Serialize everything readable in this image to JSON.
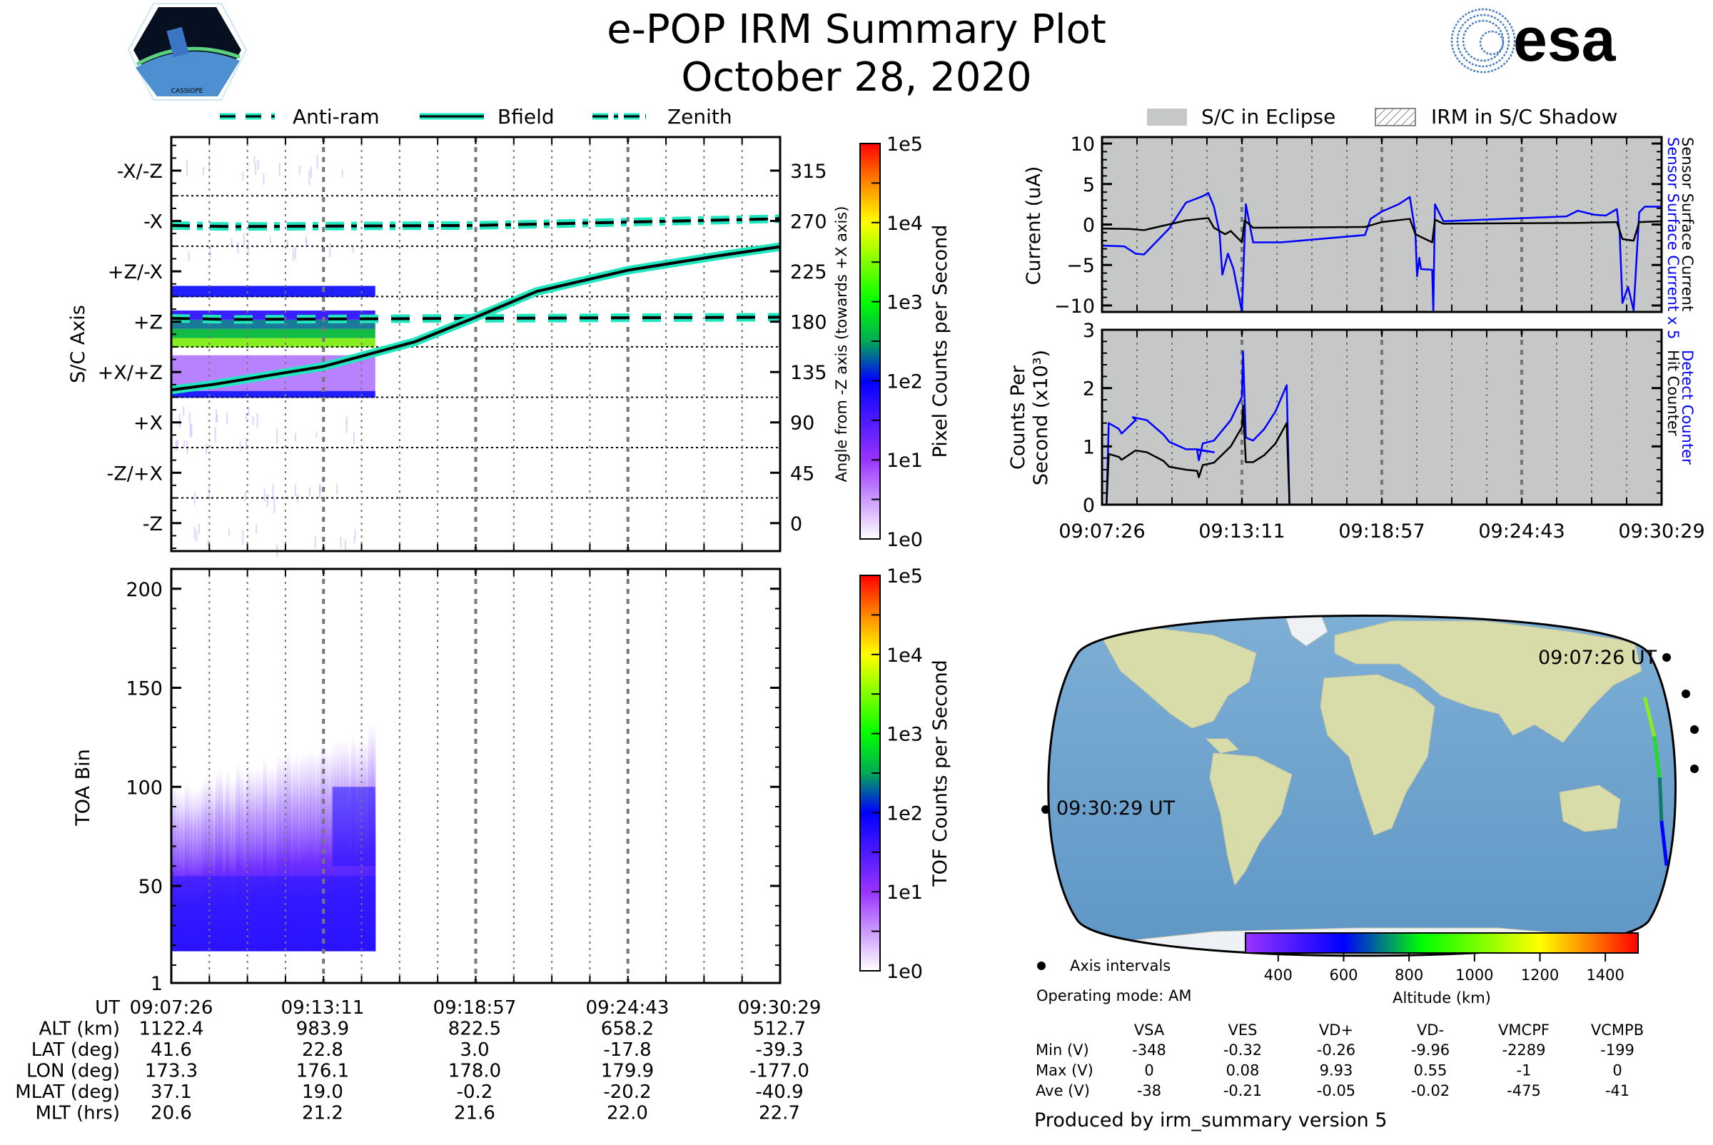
{
  "header": {
    "title": "e-POP IRM Summary Plot",
    "date": "October 28, 2020",
    "left_logo": {
      "name": "CASSIOPE",
      "icon": "cassiope-mission-patch"
    },
    "right_logo": {
      "name": "esa",
      "icon": "esa-logo",
      "color": "#003399"
    }
  },
  "time_axis": {
    "start": "09:07:26",
    "end": "09:30:29",
    "start_seconds": 32846,
    "end_seconds": 34229,
    "tick_labels": [
      "09:07:26",
      "09:13:11",
      "09:18:57",
      "09:24:43",
      "09:30:29"
    ]
  },
  "legend_left": {
    "items": [
      {
        "label": "Anti-ram",
        "style": "dashed",
        "color": "#22e6c0"
      },
      {
        "label": "Bfield",
        "style": "solid",
        "color": "#22e6c0"
      },
      {
        "label": "Zenith",
        "style": "dashdot",
        "color": "#22e6c0"
      }
    ]
  },
  "legend_right": {
    "items": [
      {
        "label": "S/C in Eclipse",
        "style": "fill",
        "color": "#c5c8c7"
      },
      {
        "label": "IRM in S/C Shadow",
        "style": "hatch",
        "color": "#888888"
      }
    ]
  },
  "chart_data": [
    {
      "id": "sc-axis-spectrogram",
      "type": "heatmap",
      "ylabel": "S/C Axis",
      "y2label": "Angle from -Z axis (towards +X axis)",
      "ytick_labels": [
        "-X/-Z",
        "-X",
        "+Z/-X",
        "+Z",
        "+X/+Z",
        "+X",
        "-Z/+X",
        "-Z"
      ],
      "y2ticks": [
        315,
        270,
        225,
        180,
        135,
        90,
        45,
        0
      ],
      "y2lim": [
        -25,
        345
      ],
      "colorbar": {
        "label": "Pixel Counts per Second",
        "scale": "log",
        "ticks": [
          "1e5",
          "1e4",
          "1e3",
          "1e2",
          "1e1",
          "1e0"
        ]
      },
      "data_end_time": "09:14:31",
      "bands": [
        {
          "angle_range": [
            202,
            212
          ],
          "level": "blue"
        },
        {
          "angle_range": [
            157,
            190
          ],
          "level": "green"
        },
        {
          "angle_range": [
            112,
            150
          ],
          "level": "violet"
        },
        {
          "angle_range": [
            112,
            118
          ],
          "level": "blue"
        }
      ],
      "series": [
        {
          "name": "Zenith",
          "style": "dashdot",
          "angles": [
            [
              0,
              266
            ],
            [
              0.1,
              265
            ],
            [
              0.5,
              266
            ],
            [
              1.0,
              272
            ]
          ]
        },
        {
          "name": "Anti-ram",
          "style": "dashed",
          "angles": [
            [
              0,
              183
            ],
            [
              0.1,
              182
            ],
            [
              0.5,
              183
            ],
            [
              1.0,
              184
            ]
          ]
        },
        {
          "name": "Bfield",
          "style": "solid",
          "angles": [
            [
              0,
              119
            ],
            [
              0.07,
              124
            ],
            [
              0.25,
              140
            ],
            [
              0.4,
              162
            ],
            [
              0.5,
              184
            ],
            [
              0.6,
              207
            ],
            [
              0.75,
              226
            ],
            [
              0.9,
              239
            ],
            [
              1.0,
              247
            ]
          ]
        }
      ]
    },
    {
      "id": "toa-spectrogram",
      "type": "heatmap",
      "ylabel": "TOA Bin",
      "yticks": [
        1,
        50,
        100,
        150,
        200
      ],
      "ylim": [
        1,
        210
      ],
      "colorbar": {
        "label": "TOF Counts per Second",
        "scale": "log",
        "ticks": [
          "1e5",
          "1e4",
          "1e3",
          "1e2",
          "1e1",
          "1e0"
        ]
      },
      "data_end_time": "09:14:31",
      "description": "Broad violet/blue counts from TOA bin ~17 up to ~60-120, intensifying near bins 30-45 and 75-90"
    },
    {
      "id": "sensor-current",
      "type": "line",
      "ylabel": "Current (uA)",
      "yticks": [
        10,
        5,
        0,
        -5,
        -10
      ],
      "ylim": [
        -10.8,
        10.8
      ],
      "background": "S/C in Eclipse",
      "right_labels": [
        {
          "text": "Sensor Surface Current x 5",
          "color": "#0000ff"
        },
        {
          "text": "Sensor Surface Current",
          "color": "#000000"
        }
      ],
      "series": [
        {
          "name": "Sensor Surface Current x 5",
          "color": "#0000ff",
          "points": [
            [
              0,
              -2.6
            ],
            [
              0.04,
              -2.7
            ],
            [
              0.06,
              -3.6
            ],
            [
              0.075,
              -3.7
            ],
            [
              0.12,
              -0.5
            ],
            [
              0.15,
              2.7
            ],
            [
              0.18,
              3.5
            ],
            [
              0.19,
              3.9
            ],
            [
              0.2,
              2.2
            ],
            [
              0.21,
              -1
            ],
            [
              0.215,
              -6.2
            ],
            [
              0.225,
              -3.6
            ],
            [
              0.235,
              -5.5
            ],
            [
              0.25,
              -10.8
            ],
            [
              0.257,
              2.5
            ],
            [
              0.27,
              -2.2
            ],
            [
              0.32,
              -2.2
            ],
            [
              0.47,
              -1.3
            ],
            [
              0.48,
              0.7
            ],
            [
              0.5,
              1.6
            ],
            [
              0.53,
              2.5
            ],
            [
              0.55,
              3.4
            ],
            [
              0.56,
              -1
            ],
            [
              0.563,
              -6.4
            ],
            [
              0.567,
              -4.1
            ],
            [
              0.57,
              -5.5
            ],
            [
              0.59,
              -5.6
            ],
            [
              0.592,
              -10.8
            ],
            [
              0.595,
              2.5
            ],
            [
              0.61,
              0.4
            ],
            [
              0.83,
              1
            ],
            [
              0.85,
              1.7
            ],
            [
              0.88,
              1.2
            ],
            [
              0.9,
              1.1
            ],
            [
              0.92,
              1.9
            ],
            [
              0.925,
              -1
            ],
            [
              0.93,
              -9.7
            ],
            [
              0.94,
              -7.7
            ],
            [
              0.95,
              -10.6
            ],
            [
              0.96,
              1.5
            ],
            [
              0.97,
              2.2
            ],
            [
              1.0,
              2.2
            ]
          ]
        },
        {
          "name": "Sensor Surface Current",
          "color": "#000000",
          "points": [
            [
              0,
              -0.5
            ],
            [
              0.05,
              -0.55
            ],
            [
              0.075,
              -0.7
            ],
            [
              0.1,
              -0.3
            ],
            [
              0.15,
              0.5
            ],
            [
              0.19,
              0.8
            ],
            [
              0.2,
              -0.4
            ],
            [
              0.22,
              -1.2
            ],
            [
              0.23,
              -0.8
            ],
            [
              0.25,
              -2.2
            ],
            [
              0.255,
              0.5
            ],
            [
              0.27,
              -0.4
            ],
            [
              0.47,
              -0.3
            ],
            [
              0.5,
              0.3
            ],
            [
              0.55,
              0.7
            ],
            [
              0.56,
              -1.2
            ],
            [
              0.59,
              -2.2
            ],
            [
              0.595,
              0.6
            ],
            [
              0.61,
              0.1
            ],
            [
              0.85,
              0.2
            ],
            [
              0.92,
              0.3
            ],
            [
              0.93,
              -1.8
            ],
            [
              0.95,
              -2
            ],
            [
              0.96,
              0.3
            ],
            [
              1.0,
              0.4
            ]
          ]
        }
      ]
    },
    {
      "id": "counters",
      "type": "line",
      "ylabel": "Counts Per Second (x10^3)",
      "yticks": [
        0,
        1,
        2,
        3
      ],
      "ylim": [
        0,
        3
      ],
      "background": "S/C in Eclipse",
      "right_labels": [
        {
          "text": "Detect Counter",
          "color": "#0000ff"
        },
        {
          "text": "Hit Counter",
          "color": "#000000"
        }
      ],
      "series": [
        {
          "name": "Detect Counter",
          "color": "#0000ff",
          "points": [
            [
              0,
              0
            ],
            [
              0.008,
              0
            ],
            [
              0.012,
              1.4
            ],
            [
              0.03,
              1.3
            ],
            [
              0.035,
              1.22
            ],
            [
              0.06,
              1.45
            ],
            [
              0.055,
              1.5
            ],
            [
              0.08,
              1.45
            ],
            [
              0.11,
              1.2
            ],
            [
              0.12,
              1.08
            ],
            [
              0.15,
              0.95
            ],
            [
              0.17,
              0.95
            ],
            [
              0.2,
              0.9
            ],
            [
              0.17,
              0.94
            ],
            [
              0.173,
              0.76
            ],
            [
              0.18,
              1.05
            ],
            [
              0.2,
              1.1
            ],
            [
              0.23,
              1.45
            ],
            [
              0.25,
              1.85
            ],
            [
              0.252,
              2.63
            ],
            [
              0.257,
              1.15
            ],
            [
              0.27,
              1.1
            ],
            [
              0.29,
              1.3
            ],
            [
              0.31,
              1.6
            ],
            [
              0.33,
              2.05
            ],
            [
              0.335,
              0
            ],
            [
              1.0,
              0
            ]
          ]
        },
        {
          "name": "Hit Counter",
          "color": "#000000",
          "points": [
            [
              0,
              0
            ],
            [
              0.008,
              0
            ],
            [
              0.012,
              0.87
            ],
            [
              0.03,
              0.82
            ],
            [
              0.035,
              0.77
            ],
            [
              0.06,
              0.93
            ],
            [
              0.08,
              0.9
            ],
            [
              0.11,
              0.75
            ],
            [
              0.12,
              0.65
            ],
            [
              0.15,
              0.6
            ],
            [
              0.17,
              0.58
            ],
            [
              0.173,
              0.47
            ],
            [
              0.18,
              0.68
            ],
            [
              0.2,
              0.72
            ],
            [
              0.23,
              1.0
            ],
            [
              0.25,
              1.33
            ],
            [
              0.252,
              1.7
            ],
            [
              0.257,
              0.73
            ],
            [
              0.27,
              0.73
            ],
            [
              0.29,
              0.85
            ],
            [
              0.31,
              1.05
            ],
            [
              0.33,
              1.4
            ],
            [
              0.335,
              0
            ]
          ]
        }
      ]
    }
  ],
  "ephemeris_table": {
    "row_labels": [
      "UT",
      "ALT (km)",
      "LAT (deg)",
      "LON (deg)",
      "MLAT (deg)",
      "MLT (hrs)"
    ],
    "columns": [
      [
        "09:07:26",
        "1122.4",
        "41.6",
        "173.3",
        "37.1",
        "20.6"
      ],
      [
        "09:13:11",
        "983.9",
        "22.8",
        "176.1",
        "19.0",
        "21.2"
      ],
      [
        "09:18:57",
        "822.5",
        "3.0",
        "178.0",
        "-0.2",
        "21.6"
      ],
      [
        "09:24:43",
        "658.2",
        "-17.8",
        "179.9",
        "-20.2",
        "22.0"
      ],
      [
        "09:30:29",
        "512.7",
        "-39.3",
        "-177.0",
        "-40.9",
        "22.7"
      ]
    ]
  },
  "map": {
    "start_label": "09:07:26 UT",
    "end_label": "09:30:29 UT",
    "legend_dot_label": "Axis intervals",
    "altitude_colorbar": {
      "label": "Altitude (km)",
      "ticks": [
        "400",
        "600",
        "800",
        "1000",
        "1200",
        "1400"
      ],
      "range": [
        300,
        1500
      ]
    },
    "track_points": [
      [
        173.3,
        41.6
      ],
      [
        176.1,
        22.8
      ],
      [
        178.0,
        3.0
      ],
      [
        179.9,
        -17.8
      ],
      [
        -177.0,
        -39.3
      ]
    ]
  },
  "operating_mode": "Operating mode: AM",
  "voltage_table": {
    "headers": [
      "VSA",
      "VES",
      "VD+",
      "VD-",
      "VMCPF",
      "VCMPB"
    ],
    "rows": [
      {
        "label": "Min (V)",
        "values": [
          "-348",
          "-0.32",
          "-0.26",
          "-9.96",
          "-2289",
          "-199"
        ]
      },
      {
        "label": "Max (V)",
        "values": [
          "0",
          "0.08",
          "9.93",
          "0.55",
          "-1",
          "0"
        ]
      },
      {
        "label": "Ave (V)",
        "values": [
          "-38",
          "-0.21",
          "-0.05",
          "-0.02",
          "-475",
          "-41"
        ]
      }
    ]
  },
  "footer": "Produced by irm_summary version 5"
}
